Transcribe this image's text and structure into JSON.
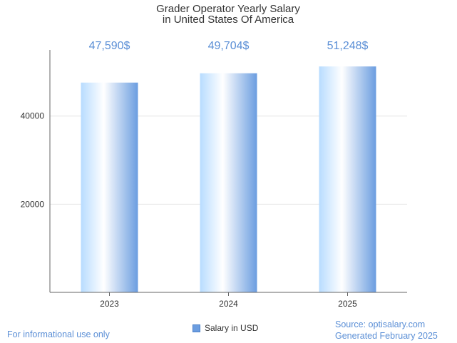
{
  "chart_data": {
    "type": "bar",
    "title_lines": [
      "Grader Operator Yearly Salary",
      "in United States Of America"
    ],
    "categories": [
      "2023",
      "2024",
      "2025"
    ],
    "series": [
      {
        "name": "Salary in USD",
        "values": [
          47590,
          49704,
          51248
        ]
      }
    ],
    "value_labels": [
      "47,590$",
      "49,704$",
      "51,248$"
    ],
    "y_ticks": [
      20000,
      40000
    ],
    "ylim": [
      0,
      55000
    ],
    "grid": true,
    "legend_position": "bottom-center",
    "bar_colors": [
      "#b8dcff",
      "#ffffff",
      "#6b9de0"
    ]
  },
  "footer": {
    "left": "For informational use only",
    "source": "Source: optisalary.com",
    "generated": "Generated February 2025"
  }
}
